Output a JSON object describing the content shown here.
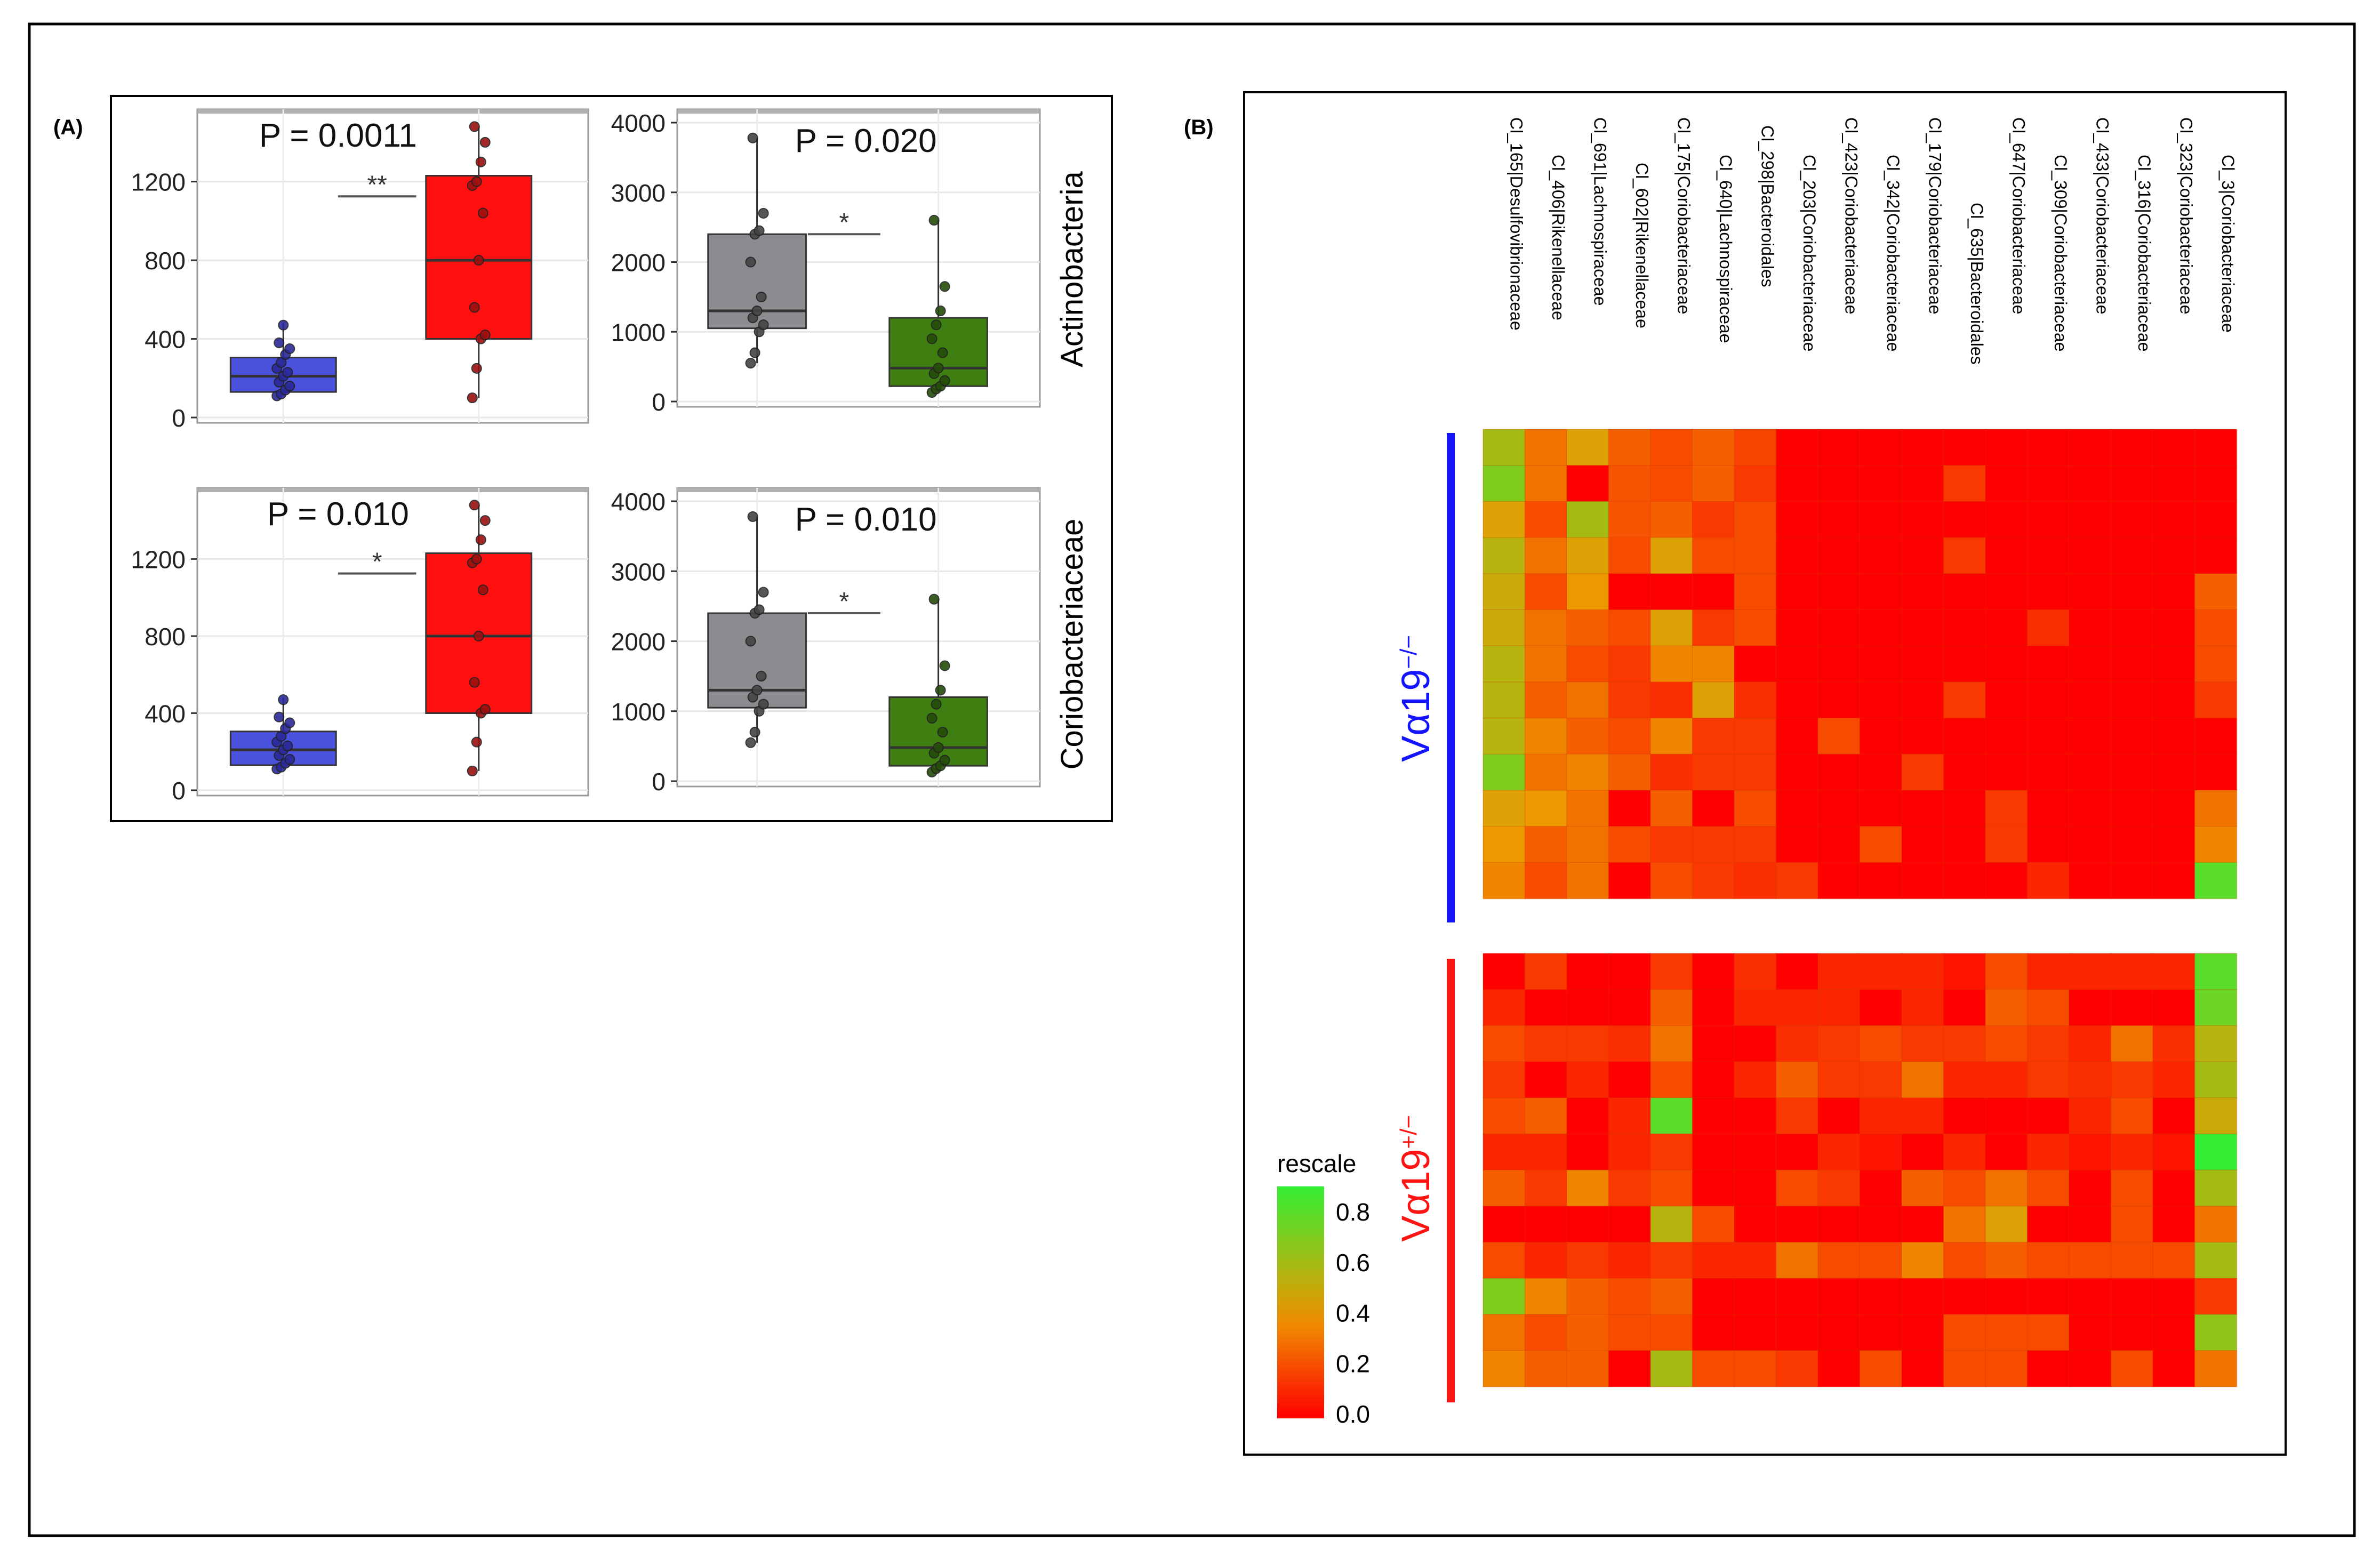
{
  "panel_a_label": "(A)",
  "panel_b_label": "(B)",
  "row_labels": [
    "Actinobacteria",
    "Coriobacteriaceae"
  ],
  "colors": {
    "blue_fill": "#4a52dd",
    "blue_stroke": "#2a2a9a",
    "red_fill": "#ff1010",
    "red_stroke": "#991010",
    "gray_fill": "#8a8c8f",
    "gray_stroke": "#444444",
    "green_fill": "#3f7f12",
    "green_stroke": "#254d0a",
    "heat_low": "#ff0000",
    "heat_mid": "#ee9a00",
    "heat_high": "#33ee33",
    "group_a_bar": "#1414ff",
    "group_b_bar": "#ff1414"
  },
  "chart_data": [
    {
      "type": "box",
      "id": "box-actino-1",
      "title": "",
      "annotation": "P = 0.0011",
      "significance": "**",
      "ylim": [
        0,
        1500
      ],
      "ytick_labels": [
        "0",
        "400",
        "800",
        "1200"
      ],
      "ytick_values": [
        0,
        400,
        800,
        1200
      ],
      "groups": [
        {
          "name": "blue",
          "q1": 130,
          "median": 210,
          "q3": 305,
          "whisker_low": 110,
          "whisker_high": 480,
          "points": [
            110,
            120,
            140,
            160,
            180,
            210,
            230,
            250,
            280,
            320,
            350,
            380,
            470
          ]
        },
        {
          "name": "red",
          "q1": 400,
          "median": 800,
          "q3": 1230,
          "whisker_low": 100,
          "whisker_high": 1480,
          "points": [
            100,
            250,
            400,
            420,
            560,
            800,
            1040,
            1180,
            1200,
            1300,
            1400,
            1480
          ]
        }
      ]
    },
    {
      "type": "box",
      "id": "box-actino-2",
      "annotation": "P = 0.020",
      "significance": "*",
      "ylim": [
        0,
        4000
      ],
      "ytick_labels": [
        "0",
        "1000",
        "2000",
        "3000",
        "4000"
      ],
      "ytick_values": [
        0,
        1000,
        2000,
        3000,
        4000
      ],
      "ylabel": "Actinobacteria",
      "groups": [
        {
          "name": "gray",
          "q1": 1050,
          "median": 1300,
          "q3": 2400,
          "whisker_low": 550,
          "whisker_high": 3780,
          "points": [
            550,
            700,
            1000,
            1100,
            1200,
            1300,
            1500,
            2000,
            2400,
            2450,
            2700,
            3780
          ]
        },
        {
          "name": "green",
          "q1": 220,
          "median": 480,
          "q3": 1200,
          "whisker_low": 130,
          "whisker_high": 2600,
          "points": [
            130,
            180,
            220,
            300,
            400,
            480,
            700,
            900,
            1100,
            1300,
            1650,
            2600
          ]
        }
      ]
    },
    {
      "type": "box",
      "id": "box-corio-1",
      "annotation": "P = 0.010",
      "significance": "*",
      "ylim": [
        0,
        1500
      ],
      "ytick_labels": [
        "0",
        "400",
        "800",
        "1200"
      ],
      "ytick_values": [
        0,
        400,
        800,
        1200
      ],
      "groups": [
        {
          "name": "blue",
          "q1": 130,
          "median": 210,
          "q3": 305,
          "whisker_low": 110,
          "whisker_high": 480,
          "points": [
            110,
            120,
            140,
            160,
            180,
            210,
            230,
            250,
            280,
            320,
            350,
            380,
            470
          ]
        },
        {
          "name": "red",
          "q1": 400,
          "median": 800,
          "q3": 1230,
          "whisker_low": 100,
          "whisker_high": 1480,
          "points": [
            100,
            250,
            400,
            420,
            560,
            800,
            1040,
            1180,
            1200,
            1300,
            1400,
            1480
          ]
        }
      ]
    },
    {
      "type": "box",
      "id": "box-corio-2",
      "annotation": "P = 0.010",
      "significance": "*",
      "ylim": [
        0,
        4000
      ],
      "ytick_labels": [
        "0",
        "1000",
        "2000",
        "3000",
        "4000"
      ],
      "ytick_values": [
        0,
        1000,
        2000,
        3000,
        4000
      ],
      "ylabel": "Coriobacteriaceae",
      "groups": [
        {
          "name": "gray",
          "q1": 1050,
          "median": 1300,
          "q3": 2400,
          "whisker_low": 550,
          "whisker_high": 3780,
          "points": [
            550,
            700,
            1000,
            1100,
            1200,
            1300,
            1500,
            2000,
            2400,
            2450,
            2700,
            3780
          ]
        },
        {
          "name": "green",
          "q1": 220,
          "median": 480,
          "q3": 1200,
          "whisker_low": 130,
          "whisker_high": 2600,
          "points": [
            130,
            180,
            220,
            300,
            400,
            480,
            700,
            900,
            1100,
            1300,
            1650,
            2600
          ]
        }
      ]
    },
    {
      "type": "heatmap",
      "id": "heatmap-b",
      "columns": [
        "Cl_165|Desulfovibrionaceae",
        "Cl_406|Rikenellaceae",
        "Cl_691|Lachnospiraceae",
        "Cl_602|Rikenellaceae",
        "Cl_175|Coriobacteriaceae",
        "Cl_640|Lachnospiraceae",
        "Cl_298|Bacteroidales",
        "Cl_203|Coriobacteriaceae",
        "Cl_423|Coriobacteriaceae",
        "Cl_342|Coriobacteriaceae",
        "Cl_179|Coriobacteriaceae",
        "Cl_635|Bacteroidales",
        "Cl_647|Coriobacteriaceae",
        "Cl_309|Coriobacteriaceae",
        "Cl_433|Coriobacteriaceae",
        "Cl_316|Coriobacteriaceae",
        "Cl_323|Coriobacteriaceae",
        "Cl_3|Coriobacteriaceae"
      ],
      "group_labels": [
        {
          "base": "Vα19",
          "sup": "−/−"
        },
        {
          "base": "Vα19",
          "sup": "+/−"
        }
      ],
      "legend_title": "rescale",
      "legend_ticks": [
        "0.8",
        "0.6",
        "0.4",
        "0.2",
        "0.0"
      ],
      "legend_values": [
        0.8,
        0.6,
        0.4,
        0.2,
        0.0
      ],
      "value_range": [
        0,
        0.9
      ],
      "groups": [
        [
          [
            0.6,
            0.3,
            0.45,
            0.25,
            0.2,
            0.25,
            0.18,
            0,
            0,
            0,
            0,
            0,
            0,
            0,
            0,
            0,
            0,
            0
          ],
          [
            0.7,
            0.3,
            0.0,
            0.22,
            0.2,
            0.25,
            0.15,
            0,
            0,
            0,
            0,
            0.15,
            0,
            0,
            0,
            0,
            0,
            0
          ],
          [
            0.45,
            0.2,
            0.6,
            0.22,
            0.25,
            0.15,
            0.2,
            0,
            0,
            0,
            0,
            0,
            0,
            0,
            0,
            0,
            0,
            0
          ],
          [
            0.55,
            0.3,
            0.45,
            0.2,
            0.45,
            0.2,
            0.2,
            0,
            0,
            0,
            0,
            0.15,
            0,
            0,
            0,
            0,
            0,
            0
          ],
          [
            0.5,
            0.2,
            0.4,
            0.0,
            0.0,
            0.0,
            0.2,
            0,
            0,
            0,
            0,
            0,
            0,
            0,
            0,
            0,
            0,
            0.25
          ],
          [
            0.5,
            0.3,
            0.25,
            0.2,
            0.45,
            0.15,
            0.2,
            0,
            0,
            0,
            0,
            0,
            0,
            0.12,
            0,
            0,
            0,
            0.2
          ],
          [
            0.55,
            0.3,
            0.2,
            0.15,
            0.35,
            0.35,
            0.0,
            0,
            0,
            0,
            0,
            0,
            0,
            0,
            0,
            0,
            0,
            0.2
          ],
          [
            0.55,
            0.25,
            0.3,
            0.15,
            0.12,
            0.45,
            0.12,
            0,
            0,
            0,
            0,
            0.15,
            0,
            0,
            0,
            0,
            0,
            0.15
          ],
          [
            0.55,
            0.35,
            0.25,
            0.2,
            0.35,
            0.15,
            0.15,
            0,
            0.2,
            0,
            0,
            0,
            0,
            0,
            0,
            0,
            0,
            0
          ],
          [
            0.7,
            0.3,
            0.35,
            0.25,
            0.12,
            0.15,
            0.15,
            0,
            0,
            0,
            0.15,
            0,
            0,
            0,
            0,
            0,
            0,
            0
          ],
          [
            0.45,
            0.4,
            0.3,
            0.0,
            0.25,
            0.0,
            0.2,
            0,
            0,
            0,
            0,
            0,
            0.15,
            0,
            0,
            0,
            0,
            0.3
          ],
          [
            0.4,
            0.25,
            0.3,
            0.2,
            0.15,
            0.15,
            0.15,
            0,
            0,
            0.2,
            0,
            0,
            0.15,
            0,
            0,
            0,
            0,
            0.35
          ],
          [
            0.35,
            0.2,
            0.3,
            0.0,
            0.2,
            0.15,
            0.12,
            0.15,
            0,
            0,
            0,
            0,
            0,
            0.1,
            0,
            0,
            0,
            0.8
          ]
        ],
        [
          [
            0.0,
            0.15,
            0.0,
            0.0,
            0.15,
            0.0,
            0.12,
            0.0,
            0.1,
            0.1,
            0.1,
            0.05,
            0.2,
            0.1,
            0.1,
            0.1,
            0.1,
            0.8
          ],
          [
            0.1,
            0.0,
            0.0,
            0.0,
            0.25,
            0.0,
            0.1,
            0.1,
            0.1,
            0.0,
            0.1,
            0.0,
            0.25,
            0.2,
            0.0,
            0.0,
            0.0,
            0.75
          ],
          [
            0.2,
            0.15,
            0.15,
            0.12,
            0.3,
            0.0,
            0.0,
            0.12,
            0.15,
            0.2,
            0.15,
            0.15,
            0.2,
            0.15,
            0.1,
            0.3,
            0.12,
            0.55
          ],
          [
            0.15,
            0.0,
            0.1,
            0.0,
            0.2,
            0.0,
            0.1,
            0.25,
            0.15,
            0.15,
            0.3,
            0.1,
            0.1,
            0.15,
            0.12,
            0.15,
            0.1,
            0.6
          ],
          [
            0.2,
            0.25,
            0.0,
            0.1,
            0.8,
            0.0,
            0.0,
            0.15,
            0.0,
            0.1,
            0.1,
            0.0,
            0.0,
            0.0,
            0.1,
            0.2,
            0.0,
            0.5
          ],
          [
            0.1,
            0.1,
            0.0,
            0.1,
            0.15,
            0.0,
            0.0,
            0.0,
            0.1,
            0.05,
            0.0,
            0.1,
            0.0,
            0.1,
            0.05,
            0.1,
            0.05,
            0.9
          ],
          [
            0.25,
            0.15,
            0.35,
            0.15,
            0.2,
            0.0,
            0.0,
            0.2,
            0.15,
            0.0,
            0.25,
            0.2,
            0.3,
            0.2,
            0.0,
            0.2,
            0.0,
            0.6
          ],
          [
            0.0,
            0.0,
            0.0,
            0.0,
            0.55,
            0.2,
            0.0,
            0.0,
            0.0,
            0.0,
            0.0,
            0.3,
            0.45,
            0.0,
            0.0,
            0.2,
            0.0,
            0.3
          ],
          [
            0.2,
            0.1,
            0.15,
            0.1,
            0.15,
            0.1,
            0.1,
            0.3,
            0.2,
            0.2,
            0.35,
            0.2,
            0.25,
            0.2,
            0.2,
            0.2,
            0.2,
            0.6
          ],
          [
            0.7,
            0.35,
            0.25,
            0.2,
            0.25,
            0.0,
            0.0,
            0.0,
            0.0,
            0.0,
            0.0,
            0.0,
            0.0,
            0.0,
            0.0,
            0.0,
            0.0,
            0.15
          ],
          [
            0.3,
            0.2,
            0.25,
            0.2,
            0.2,
            0.0,
            0.0,
            0.0,
            0.0,
            0.0,
            0.0,
            0.2,
            0.2,
            0.2,
            0.0,
            0.0,
            0.0,
            0.65
          ],
          [
            0.35,
            0.25,
            0.25,
            0.0,
            0.6,
            0.2,
            0.2,
            0.15,
            0.0,
            0.2,
            0.0,
            0.2,
            0.2,
            0.0,
            0.0,
            0.2,
            0.0,
            0.3
          ]
        ]
      ]
    }
  ]
}
